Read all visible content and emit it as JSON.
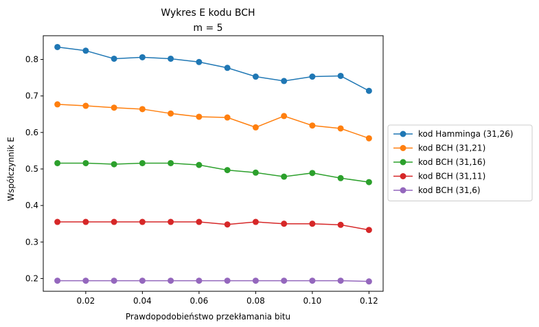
{
  "chart_data": {
    "type": "line",
    "title": "Wykres E kodu BCH",
    "subtitle": "m = 5",
    "xlabel": "Prawdopodobieństwo przekłamania bitu",
    "ylabel": "Współczynnik E",
    "xlim": [
      0.005,
      0.125
    ],
    "ylim": [
      0.165,
      0.865
    ],
    "x_ticks": [
      {
        "value": 0.02,
        "label": "0.02"
      },
      {
        "value": 0.04,
        "label": "0.04"
      },
      {
        "value": 0.06,
        "label": "0.06"
      },
      {
        "value": 0.08,
        "label": "0.08"
      },
      {
        "value": 0.1,
        "label": "0.10"
      },
      {
        "value": 0.12,
        "label": "0.12"
      }
    ],
    "y_ticks": [
      {
        "value": 0.2,
        "label": "0.2"
      },
      {
        "value": 0.3,
        "label": "0.3"
      },
      {
        "value": 0.4,
        "label": "0.4"
      },
      {
        "value": 0.5,
        "label": "0.5"
      },
      {
        "value": 0.6,
        "label": "0.6"
      },
      {
        "value": 0.7,
        "label": "0.7"
      },
      {
        "value": 0.8,
        "label": "0.8"
      }
    ],
    "grid": false,
    "legend_position": "outside-right",
    "x": [
      0.01,
      0.02,
      0.03,
      0.04,
      0.05,
      0.06,
      0.07,
      0.08,
      0.09,
      0.1,
      0.11,
      0.12
    ],
    "series": [
      {
        "name": "kod Hamminga (31,26)",
        "color": "#1f77b4",
        "values": [
          0.834,
          0.824,
          0.802,
          0.806,
          0.802,
          0.793,
          0.777,
          0.753,
          0.741,
          0.753,
          0.755,
          0.714
        ]
      },
      {
        "name": "kod BCH (31,21)",
        "color": "#ff7f0e",
        "values": [
          0.677,
          0.673,
          0.668,
          0.664,
          0.652,
          0.643,
          0.641,
          0.614,
          0.645,
          0.619,
          0.611,
          0.584
        ]
      },
      {
        "name": "kod BCH (31,16)",
        "color": "#2ca02c",
        "values": [
          0.516,
          0.516,
          0.513,
          0.516,
          0.516,
          0.511,
          0.497,
          0.49,
          0.479,
          0.489,
          0.475,
          0.464
        ]
      },
      {
        "name": "kod BCH (31,11)",
        "color": "#d62728",
        "values": [
          0.355,
          0.355,
          0.355,
          0.355,
          0.355,
          0.355,
          0.348,
          0.355,
          0.35,
          0.35,
          0.347,
          0.333
        ]
      },
      {
        "name": "kod BCH (31,6)",
        "color": "#9467bd",
        "values": [
          0.194,
          0.194,
          0.194,
          0.194,
          0.194,
          0.194,
          0.194,
          0.194,
          0.194,
          0.194,
          0.194,
          0.192
        ]
      }
    ]
  }
}
